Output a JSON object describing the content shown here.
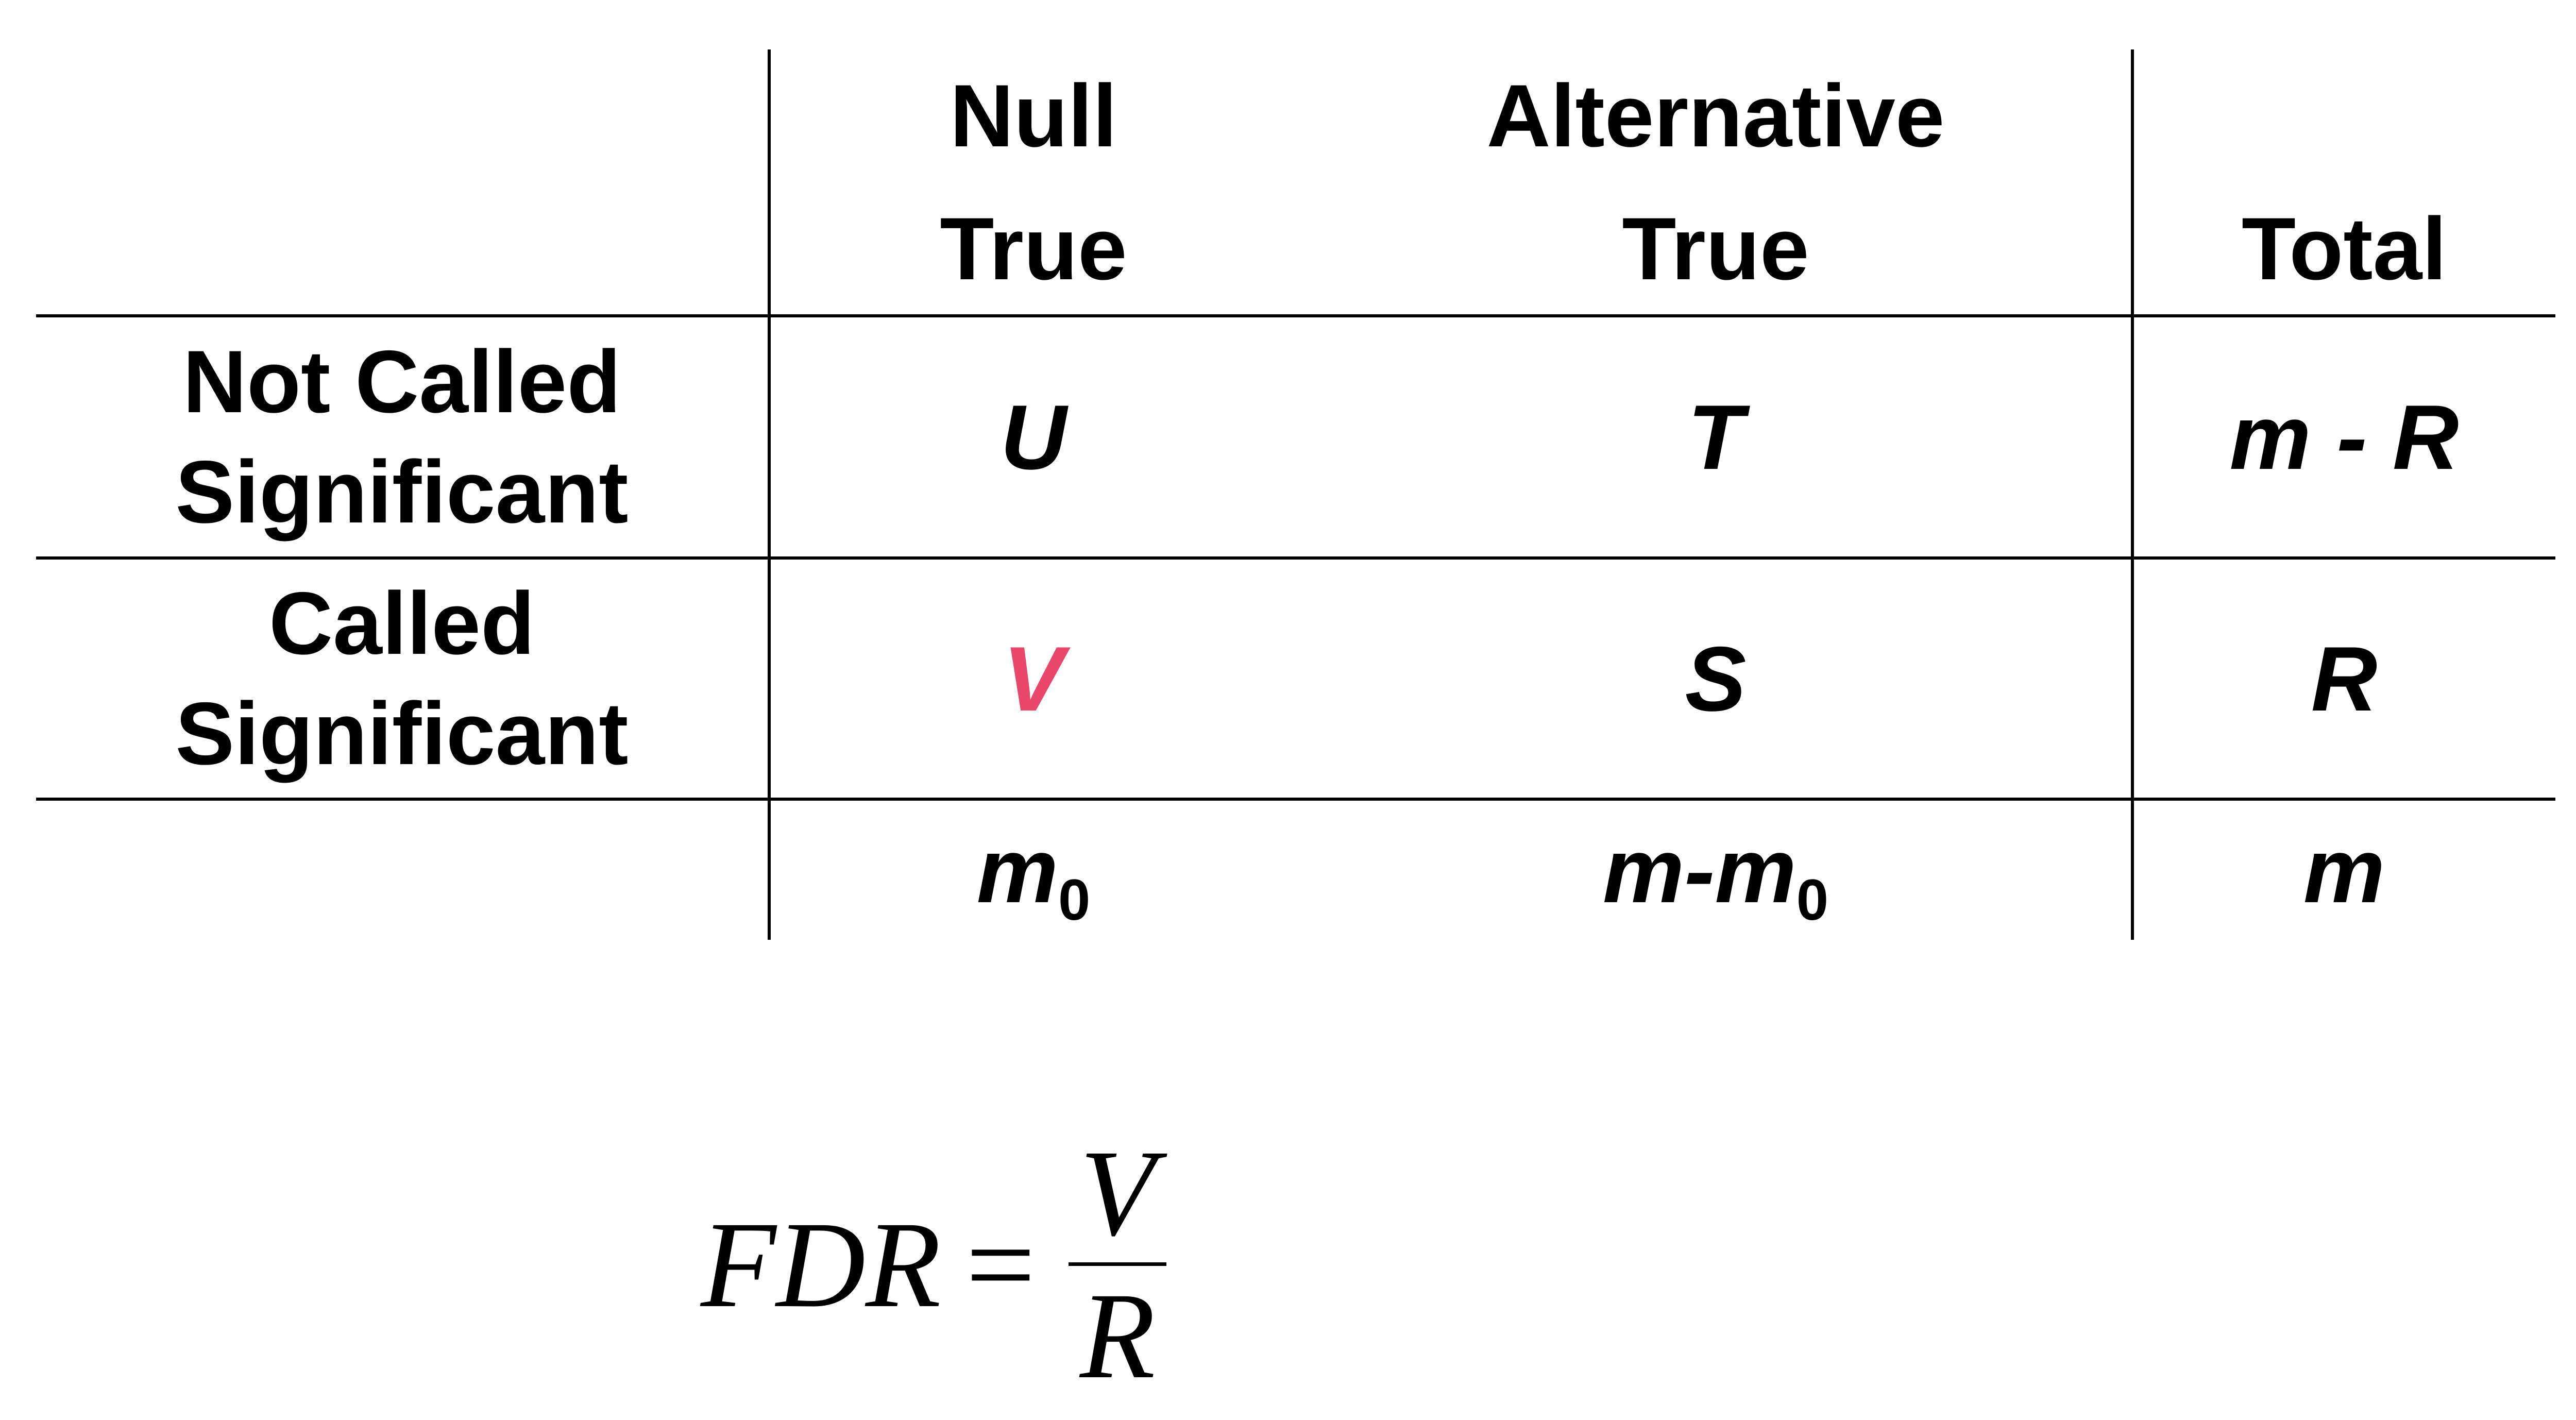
{
  "table": {
    "headers": {
      "corner": "",
      "null_true": [
        "Null",
        "True"
      ],
      "alternative_true": [
        "Alternative",
        "True"
      ],
      "total": "Total"
    },
    "rows": [
      {
        "label": [
          "Not Called",
          "Significant"
        ],
        "null_true": "U",
        "alternative_true": "T",
        "total": "m - R"
      },
      {
        "label": [
          "Called",
          "Significant"
        ],
        "null_true": "V",
        "alternative_true": "S",
        "total": "R"
      },
      {
        "label": [
          "",
          ""
        ],
        "null_true": {
          "main": "m",
          "sub": "0"
        },
        "alternative_true": {
          "main": "m-m",
          "sub": "0"
        },
        "total": "m"
      }
    ]
  },
  "formula": {
    "lhs": "FDR",
    "equals": "=",
    "numerator": "V",
    "denominator": "R"
  },
  "colors": {
    "highlight": "#e8476a",
    "text": "#000000",
    "lines": "#000000"
  }
}
